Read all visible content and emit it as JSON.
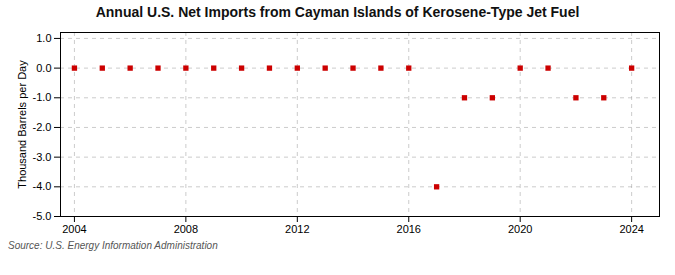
{
  "chart_data": {
    "type": "scatter",
    "title": "Annual U.S. Net Imports from Cayman Islands of Kerosene-Type Jet Fuel",
    "ylabel": "Thousand Barrels per Day",
    "source": "Source: U.S. Energy Information Administration",
    "x": [
      2004,
      2005,
      2006,
      2007,
      2008,
      2009,
      2010,
      2011,
      2012,
      2013,
      2014,
      2015,
      2016,
      2017,
      2018,
      2019,
      2020,
      2021,
      2022,
      2023,
      2024
    ],
    "values": [
      0,
      0,
      0,
      0,
      0,
      0,
      0,
      0,
      0,
      0,
      0,
      0,
      0,
      -4,
      -1,
      -1,
      0,
      0,
      -1,
      -1,
      0
    ],
    "xlim": [
      2003.5,
      2025.0
    ],
    "ylim": [
      -5.0,
      1.2
    ],
    "xticks": [
      2004,
      2008,
      2012,
      2016,
      2020,
      2024
    ],
    "yticks": [
      {
        "value": 1.0,
        "label": "1.0"
      },
      {
        "value": 0.0,
        "label": "0.0"
      },
      {
        "value": -1.0,
        "label": "-1.0"
      },
      {
        "value": -2.0,
        "label": "-2.0"
      },
      {
        "value": -3.0,
        "label": "-3.0"
      },
      {
        "value": -4.0,
        "label": "-4.0"
      },
      {
        "value": -5.0,
        "label": "-5.0"
      }
    ],
    "color": "#cc0000",
    "marker": "square",
    "grid": true
  }
}
